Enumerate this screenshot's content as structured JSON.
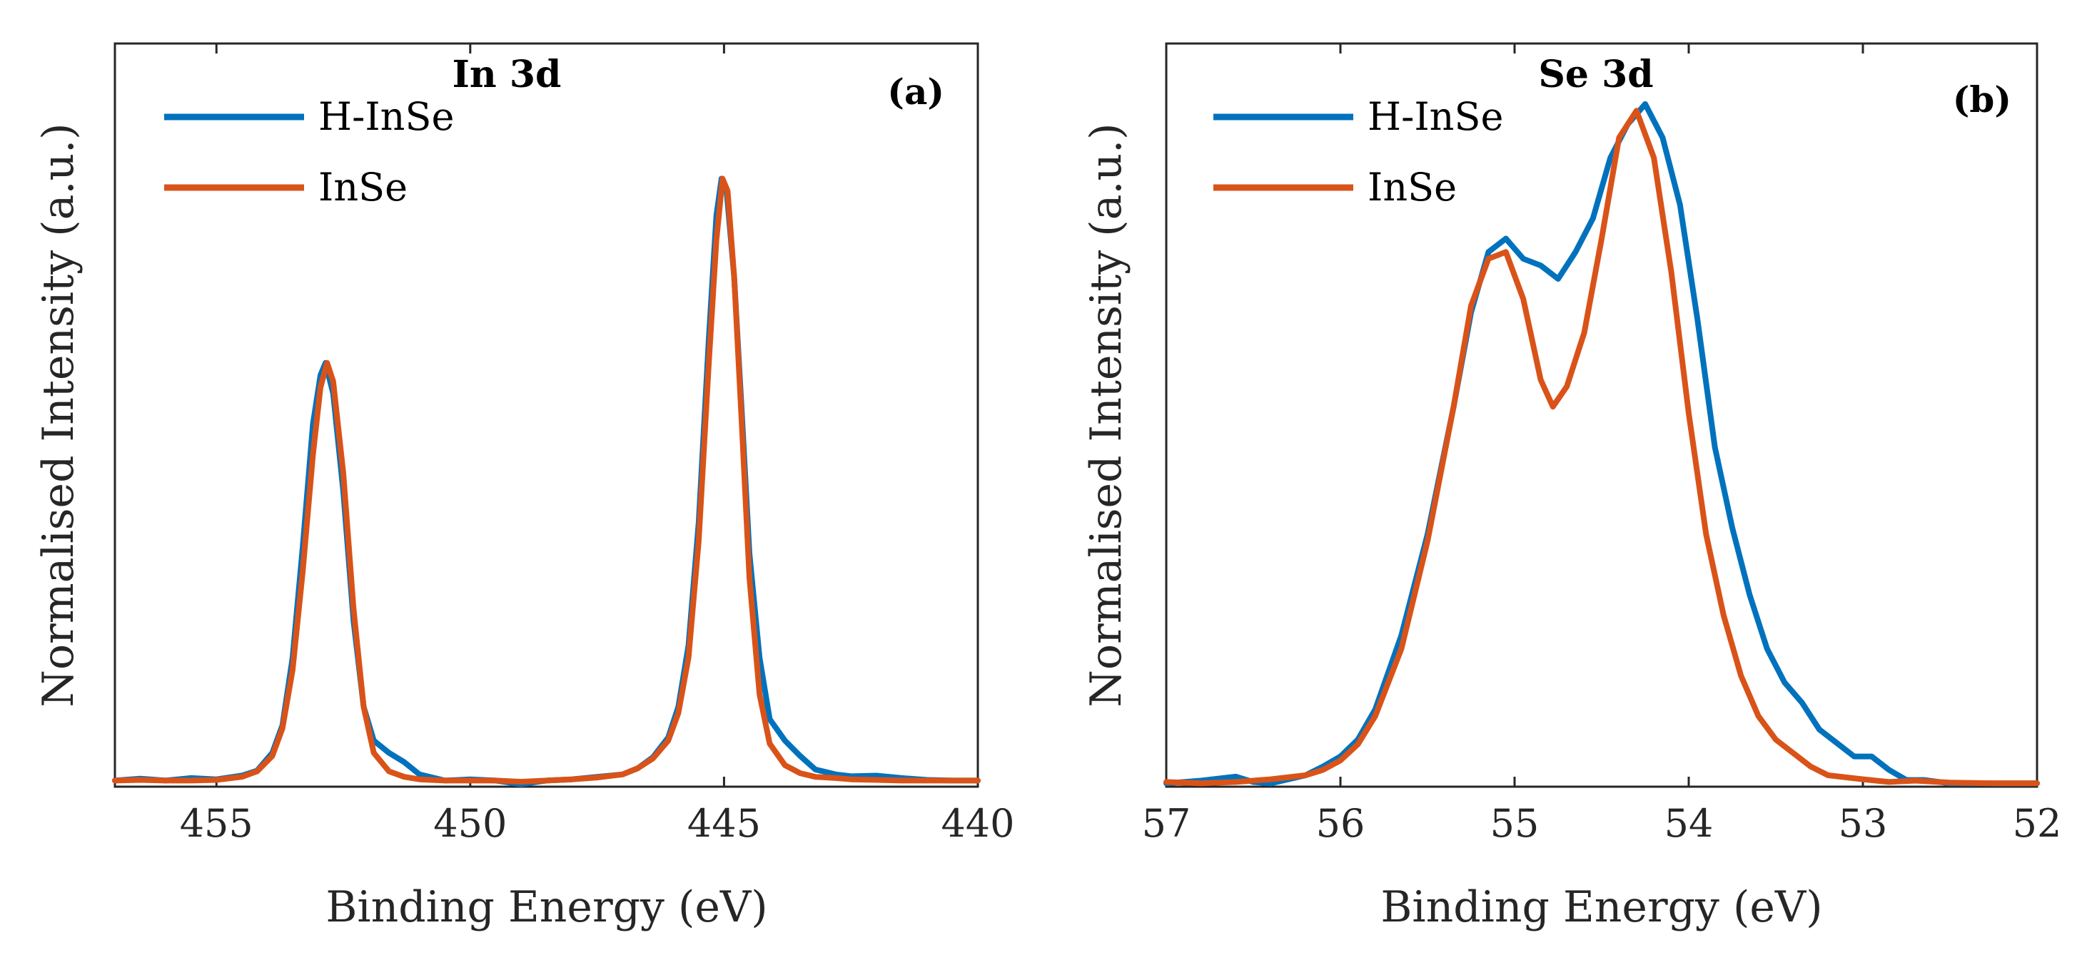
{
  "chart_data": [
    {
      "type": "line",
      "panel_label": "(a)",
      "title": "In 3d",
      "xlabel": "Binding Energy (eV)",
      "ylabel": "Normalised Intensity (a.u.)",
      "xlim": [
        457,
        440
      ],
      "ylim": [
        -0.01,
        1.2
      ],
      "x_reversed": true,
      "xticks": [
        455,
        450,
        445,
        440
      ],
      "xtick_labels": [
        "455",
        "450",
        "445",
        "440"
      ],
      "yticks_shown": false,
      "legend_position": "top-left",
      "series": [
        {
          "name": "H-InSe",
          "color": "#0072BD",
          "points": [
            [
              457,
              0.0
            ],
            [
              456.5,
              0.003
            ],
            [
              456,
              0.0
            ],
            [
              455.5,
              0.004
            ],
            [
              455,
              0.002
            ],
            [
              454.5,
              0.008
            ],
            [
              454.2,
              0.016
            ],
            [
              453.9,
              0.045
            ],
            [
              453.7,
              0.09
            ],
            [
              453.5,
              0.2
            ],
            [
              453.3,
              0.38
            ],
            [
              453.1,
              0.58
            ],
            [
              452.95,
              0.66
            ],
            [
              452.85,
              0.68
            ],
            [
              452.7,
              0.63
            ],
            [
              452.5,
              0.47
            ],
            [
              452.3,
              0.26
            ],
            [
              452.1,
              0.12
            ],
            [
              451.9,
              0.065
            ],
            [
              451.6,
              0.045
            ],
            [
              451.3,
              0.03
            ],
            [
              451.0,
              0.01
            ],
            [
              450.5,
              0.0
            ],
            [
              450,
              0.002
            ],
            [
              449.5,
              0.0
            ],
            [
              449,
              -0.006
            ],
            [
              448.5,
              0.0
            ],
            [
              448,
              0.002
            ],
            [
              447.5,
              0.006
            ],
            [
              447,
              0.01
            ],
            [
              446.7,
              0.02
            ],
            [
              446.4,
              0.038
            ],
            [
              446.1,
              0.07
            ],
            [
              445.9,
              0.12
            ],
            [
              445.7,
              0.22
            ],
            [
              445.5,
              0.42
            ],
            [
              445.3,
              0.72
            ],
            [
              445.15,
              0.92
            ],
            [
              445.05,
              0.98
            ],
            [
              444.95,
              0.96
            ],
            [
              444.8,
              0.82
            ],
            [
              444.65,
              0.6
            ],
            [
              444.5,
              0.37
            ],
            [
              444.3,
              0.2
            ],
            [
              444.1,
              0.1
            ],
            [
              443.8,
              0.065
            ],
            [
              443.5,
              0.04
            ],
            [
              443.2,
              0.018
            ],
            [
              442.8,
              0.01
            ],
            [
              442.5,
              0.007
            ],
            [
              442,
              0.008
            ],
            [
              441.5,
              0.004
            ],
            [
              441,
              0.001
            ],
            [
              440.5,
              0.0
            ],
            [
              440,
              0.0
            ]
          ]
        },
        {
          "name": "InSe",
          "color": "#D95319",
          "points": [
            [
              457,
              0.0
            ],
            [
              456.5,
              0.001
            ],
            [
              456,
              0.0
            ],
            [
              455.5,
              0.0
            ],
            [
              455,
              0.001
            ],
            [
              454.5,
              0.006
            ],
            [
              454.2,
              0.015
            ],
            [
              453.9,
              0.04
            ],
            [
              453.7,
              0.085
            ],
            [
              453.5,
              0.18
            ],
            [
              453.3,
              0.34
            ],
            [
              453.1,
              0.53
            ],
            [
              452.95,
              0.64
            ],
            [
              452.82,
              0.68
            ],
            [
              452.7,
              0.65
            ],
            [
              452.5,
              0.5
            ],
            [
              452.3,
              0.28
            ],
            [
              452.1,
              0.12
            ],
            [
              451.9,
              0.045
            ],
            [
              451.6,
              0.015
            ],
            [
              451.3,
              0.006
            ],
            [
              451.0,
              0.002
            ],
            [
              450.5,
              0.0
            ],
            [
              450,
              0.0
            ],
            [
              449.5,
              0.0
            ],
            [
              449,
              -0.002
            ],
            [
              448.5,
              0.0
            ],
            [
              448,
              0.002
            ],
            [
              447.5,
              0.005
            ],
            [
              447,
              0.01
            ],
            [
              446.7,
              0.02
            ],
            [
              446.4,
              0.036
            ],
            [
              446.1,
              0.065
            ],
            [
              445.9,
              0.11
            ],
            [
              445.7,
              0.2
            ],
            [
              445.5,
              0.39
            ],
            [
              445.3,
              0.68
            ],
            [
              445.15,
              0.88
            ],
            [
              445.03,
              0.98
            ],
            [
              444.93,
              0.96
            ],
            [
              444.8,
              0.82
            ],
            [
              444.65,
              0.58
            ],
            [
              444.5,
              0.33
            ],
            [
              444.3,
              0.14
            ],
            [
              444.1,
              0.06
            ],
            [
              443.8,
              0.025
            ],
            [
              443.5,
              0.012
            ],
            [
              443.2,
              0.006
            ],
            [
              442.8,
              0.004
            ],
            [
              442.5,
              0.002
            ],
            [
              442,
              0.001
            ],
            [
              441.5,
              0.0
            ],
            [
              441,
              0.0
            ],
            [
              440.5,
              0.0
            ],
            [
              440,
              0.0
            ]
          ]
        }
      ]
    },
    {
      "type": "line",
      "panel_label": "(b)",
      "title": "Se 3d",
      "xlabel": "Binding Energy (eV)",
      "ylabel": "Normalised Intensity (a.u.)",
      "xlim": [
        57,
        52
      ],
      "ylim": [
        -0.005,
        1.1
      ],
      "x_reversed": true,
      "xticks": [
        57,
        56,
        55,
        54,
        53,
        52
      ],
      "xtick_labels": [
        "57",
        "56",
        "55",
        "54",
        "53",
        "52"
      ],
      "yticks_shown": false,
      "legend_position": "top-left",
      "series": [
        {
          "name": "H-InSe",
          "color": "#0072BD",
          "points": [
            [
              57,
              0.0
            ],
            [
              56.8,
              0.004
            ],
            [
              56.6,
              0.01
            ],
            [
              56.5,
              0.002
            ],
            [
              56.4,
              0.0
            ],
            [
              56.2,
              0.012
            ],
            [
              56.1,
              0.025
            ],
            [
              56.0,
              0.04
            ],
            [
              55.9,
              0.065
            ],
            [
              55.8,
              0.11
            ],
            [
              55.65,
              0.22
            ],
            [
              55.5,
              0.37
            ],
            [
              55.35,
              0.56
            ],
            [
              55.25,
              0.7
            ],
            [
              55.15,
              0.79
            ],
            [
              55.05,
              0.81
            ],
            [
              54.95,
              0.78
            ],
            [
              54.85,
              0.77
            ],
            [
              54.75,
              0.75
            ],
            [
              54.65,
              0.79
            ],
            [
              54.55,
              0.84
            ],
            [
              54.45,
              0.93
            ],
            [
              54.35,
              0.98
            ],
            [
              54.25,
              1.01
            ],
            [
              54.15,
              0.96
            ],
            [
              54.05,
              0.86
            ],
            [
              53.95,
              0.69
            ],
            [
              53.85,
              0.5
            ],
            [
              53.75,
              0.38
            ],
            [
              53.65,
              0.28
            ],
            [
              53.55,
              0.2
            ],
            [
              53.45,
              0.15
            ],
            [
              53.35,
              0.12
            ],
            [
              53.25,
              0.08
            ],
            [
              53.15,
              0.06
            ],
            [
              53.05,
              0.04
            ],
            [
              52.95,
              0.04
            ],
            [
              52.85,
              0.02
            ],
            [
              52.75,
              0.005
            ],
            [
              52.65,
              0.005
            ],
            [
              52.5,
              0.0
            ],
            [
              52.25,
              0.0
            ],
            [
              52,
              0.0
            ]
          ]
        },
        {
          "name": "InSe",
          "color": "#D95319",
          "points": [
            [
              57,
              0.002
            ],
            [
              56.8,
              0.0
            ],
            [
              56.6,
              0.002
            ],
            [
              56.5,
              0.004
            ],
            [
              56.4,
              0.006
            ],
            [
              56.2,
              0.012
            ],
            [
              56.1,
              0.02
            ],
            [
              56.0,
              0.034
            ],
            [
              55.9,
              0.058
            ],
            [
              55.8,
              0.1
            ],
            [
              55.65,
              0.2
            ],
            [
              55.5,
              0.36
            ],
            [
              55.35,
              0.56
            ],
            [
              55.25,
              0.71
            ],
            [
              55.15,
              0.78
            ],
            [
              55.05,
              0.79
            ],
            [
              54.95,
              0.72
            ],
            [
              54.85,
              0.6
            ],
            [
              54.78,
              0.56
            ],
            [
              54.7,
              0.59
            ],
            [
              54.6,
              0.67
            ],
            [
              54.5,
              0.81
            ],
            [
              54.4,
              0.96
            ],
            [
              54.3,
              1.0
            ],
            [
              54.2,
              0.93
            ],
            [
              54.1,
              0.76
            ],
            [
              54.0,
              0.55
            ],
            [
              53.9,
              0.37
            ],
            [
              53.8,
              0.25
            ],
            [
              53.7,
              0.16
            ],
            [
              53.6,
              0.1
            ],
            [
              53.5,
              0.065
            ],
            [
              53.4,
              0.045
            ],
            [
              53.3,
              0.025
            ],
            [
              53.2,
              0.012
            ],
            [
              53.0,
              0.006
            ],
            [
              52.85,
              0.002
            ],
            [
              52.7,
              0.004
            ],
            [
              52.5,
              0.001
            ],
            [
              52.25,
              0.0
            ],
            [
              52,
              0.0
            ]
          ]
        }
      ]
    }
  ]
}
